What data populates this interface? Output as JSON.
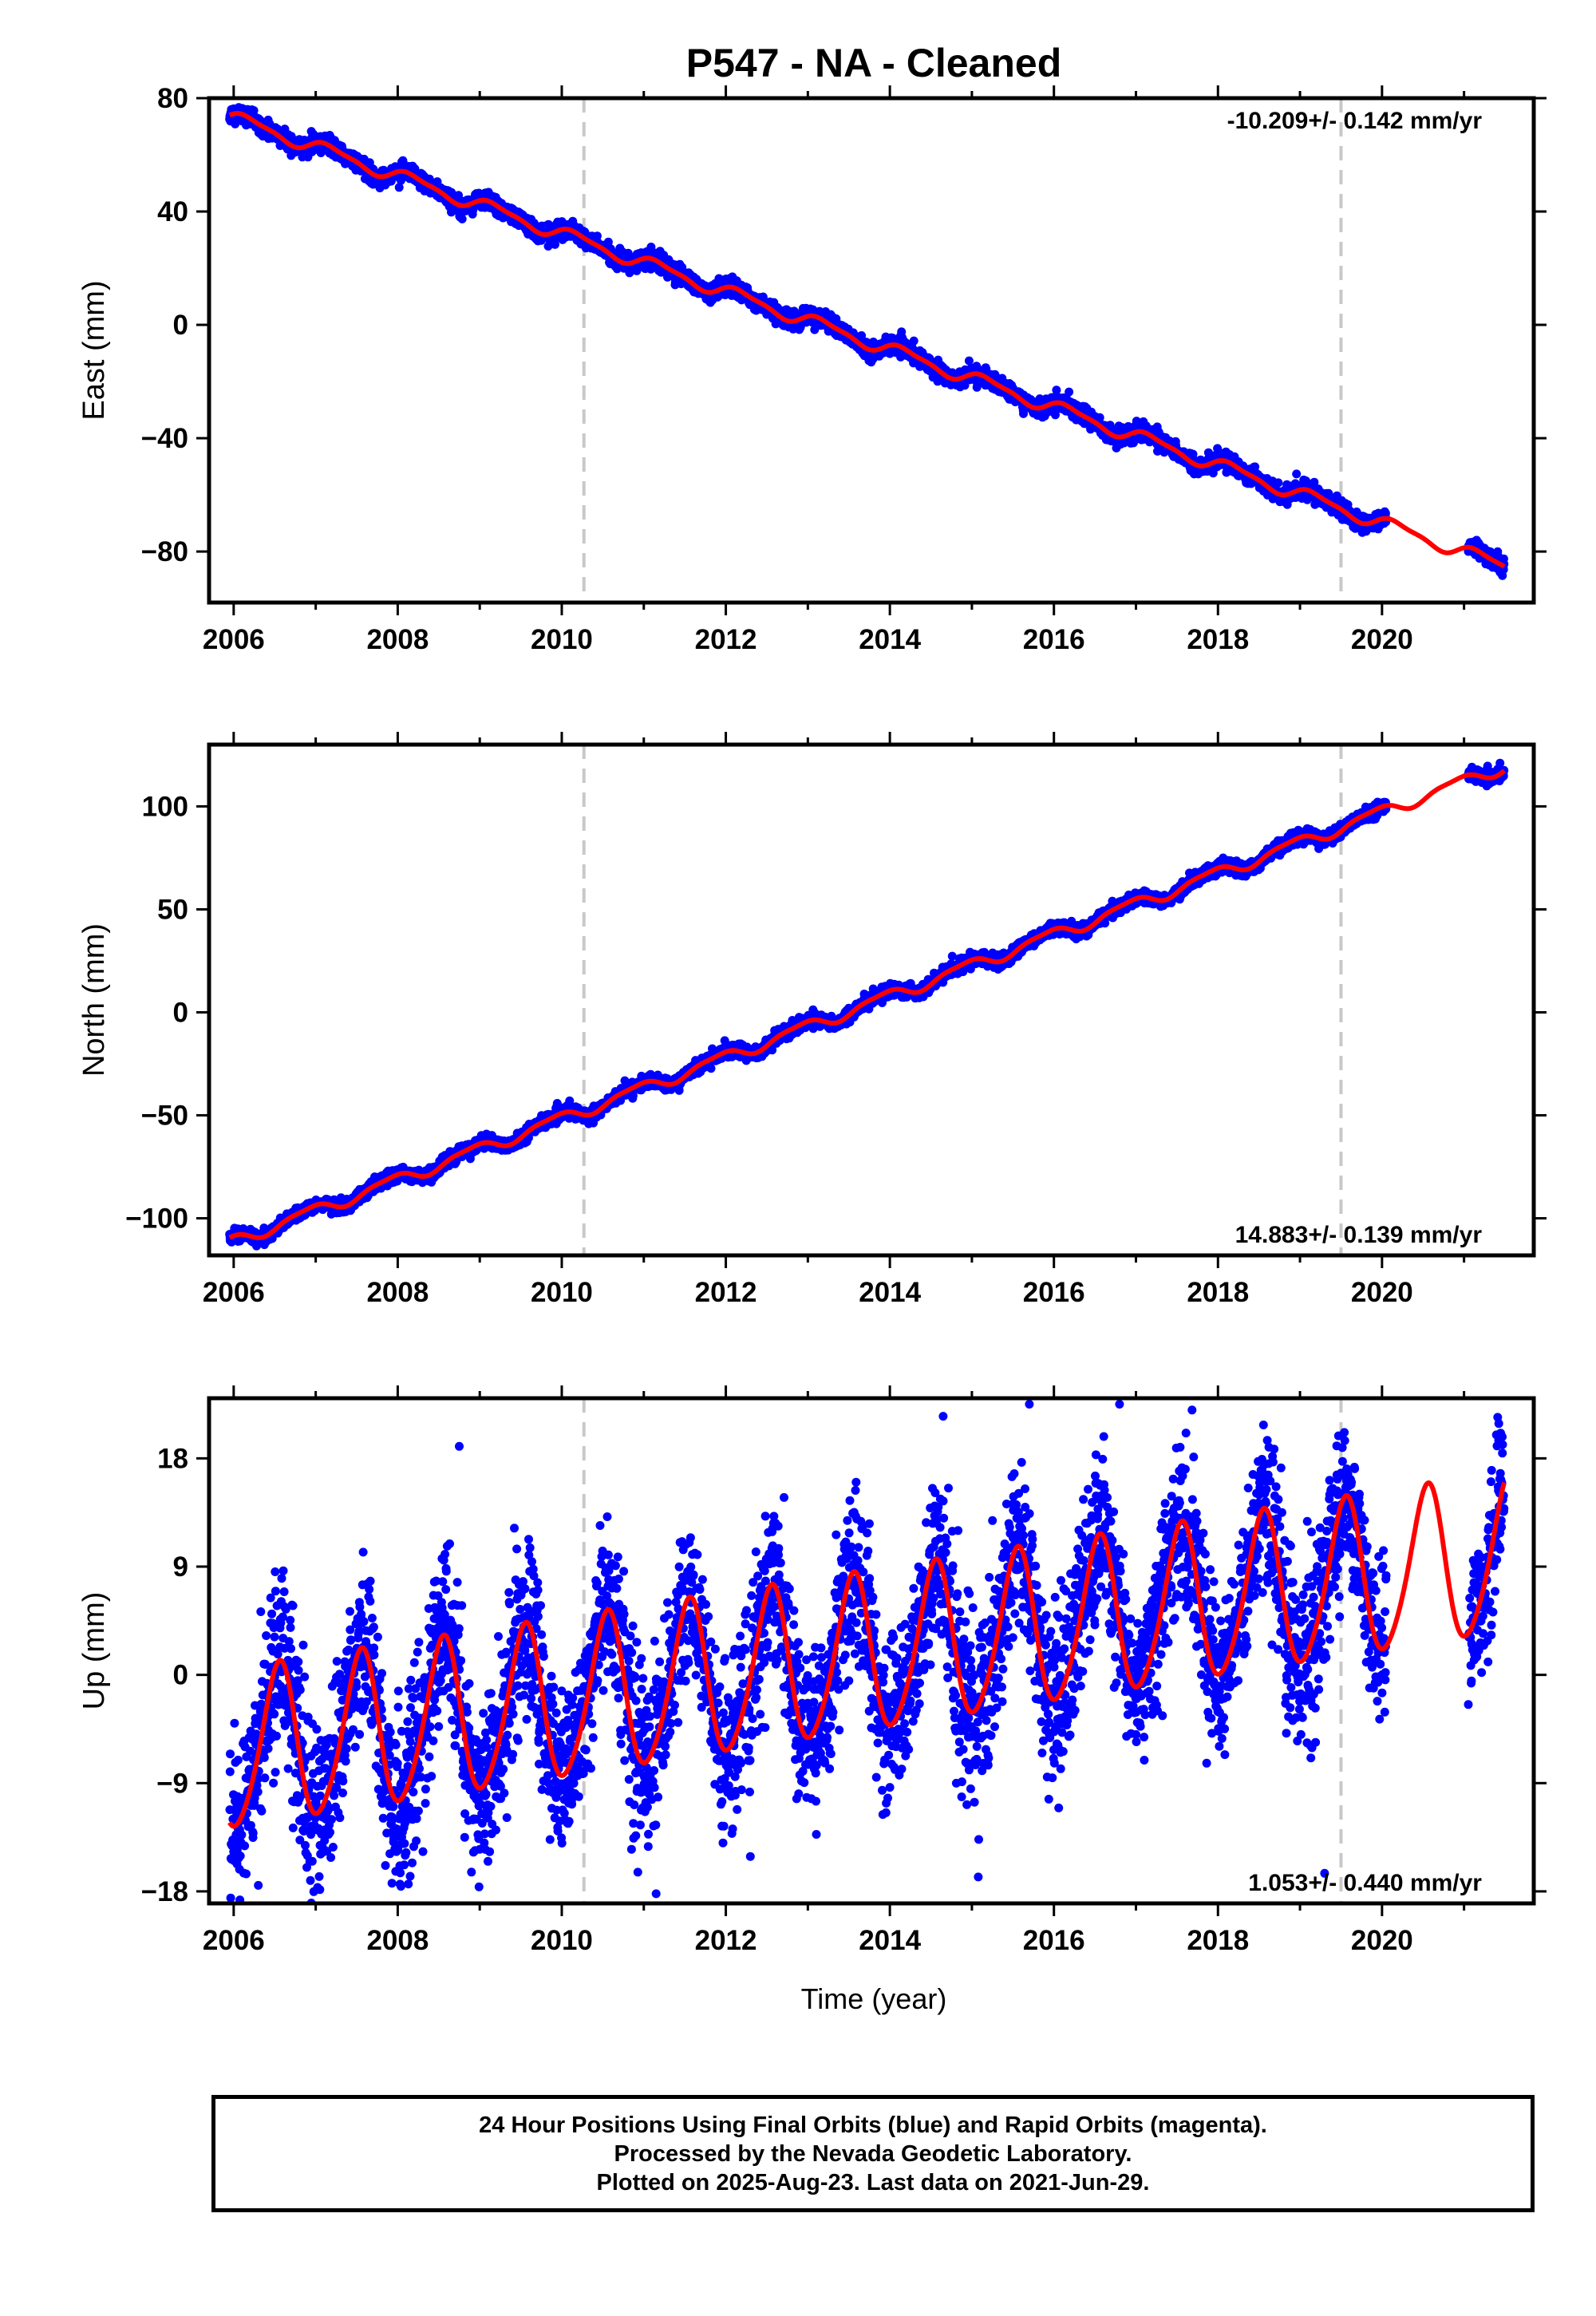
{
  "title": "P547  - NA - Cleaned",
  "xlabel": "Time (year)",
  "footer": {
    "line1": "24 Hour Positions Using Final Orbits (blue) and Rapid Orbits (magenta).",
    "line2": "Processed by the Nevada Geodetic Laboratory.",
    "line3": "Plotted on 2025-Aug-23. Last data on 2021-Jun-29."
  },
  "colors": {
    "data": "#0000ff",
    "model": "#ff0000",
    "event_line": "#c8c8c8"
  },
  "chart_data": [
    {
      "type": "scatter",
      "name": "East",
      "ylabel": "East (mm)",
      "rate_label": "-10.209+/- 0.142 mm/yr",
      "rate_position": "top-right",
      "xlim": [
        2005.7,
        2021.85
      ],
      "ylim": [
        -98,
        80
      ],
      "yticks": [
        -80,
        -40,
        0,
        40,
        80
      ],
      "xticks": [
        2006,
        2008,
        2010,
        2012,
        2014,
        2016,
        2018,
        2020
      ],
      "data_range": [
        2005.95,
        2021.49
      ],
      "gap": [
        2020.05,
        2021.05
      ],
      "event_lines": [
        2010.27,
        2019.5
      ],
      "model": {
        "anchor_x": 2006.0,
        "anchor_y": 73,
        "rate": -10.209,
        "amp_annual": 2.2,
        "phase_annual": 0.4,
        "amp_semi": 0.7,
        "phase_semi": 1.1
      },
      "noise": 1.4,
      "outliers": []
    },
    {
      "type": "scatter",
      "name": "North",
      "ylabel": "North (mm)",
      "rate_label": "14.883+/- 0.139 mm/yr",
      "rate_position": "bottom-right",
      "xlim": [
        2005.7,
        2021.85
      ],
      "ylim": [
        -118,
        130
      ],
      "yticks": [
        -100,
        -50,
        0,
        50,
        100
      ],
      "xticks": [
        2006,
        2008,
        2010,
        2012,
        2014,
        2016,
        2018,
        2020
      ],
      "data_range": [
        2005.95,
        2021.49
      ],
      "gap": [
        2020.05,
        2021.05
      ],
      "event_lines": [
        2010.27,
        2019.5
      ],
      "model": {
        "anchor_x": 2006.0,
        "anchor_y": -111,
        "rate": 14.883,
        "amp_annual": 2.8,
        "phase_annual": 2.2,
        "amp_semi": 0.8,
        "phase_semi": 0.3
      },
      "noise": 1.5,
      "outliers": []
    },
    {
      "type": "scatter",
      "name": "Up",
      "ylabel": "Up (mm)",
      "rate_label": "1.053+/- 0.440 mm/yr",
      "rate_position": "bottom-right",
      "xlim": [
        2005.7,
        2021.85
      ],
      "ylim": [
        -19,
        23
      ],
      "yticks": [
        -18,
        -9,
        0,
        9,
        18
      ],
      "xticks": [
        2006,
        2008,
        2010,
        2012,
        2014,
        2016,
        2018,
        2020
      ],
      "data_range": [
        2005.95,
        2021.49
      ],
      "gap": [
        2020.05,
        2021.05
      ],
      "event_lines": [
        2010.27,
        2019.5
      ],
      "model": {
        "anchor_x": 2006.0,
        "anchor_y": -6.5,
        "rate": 1.053,
        "amp_annual": 6.5,
        "phase_annual": -1.85,
        "amp_semi": 0.8,
        "phase_semi": 0.2
      },
      "noise": 3.0,
      "outliers": [
        [
          2008.75,
          19.0
        ],
        [
          2014.65,
          21.5
        ],
        [
          2015.7,
          22.5
        ],
        [
          2016.8,
          22.5
        ],
        [
          2011.15,
          -18.2
        ],
        [
          2006.3,
          -17.5
        ],
        [
          2019.3,
          -16.5
        ],
        [
          2009.1,
          -15.5
        ]
      ]
    }
  ]
}
